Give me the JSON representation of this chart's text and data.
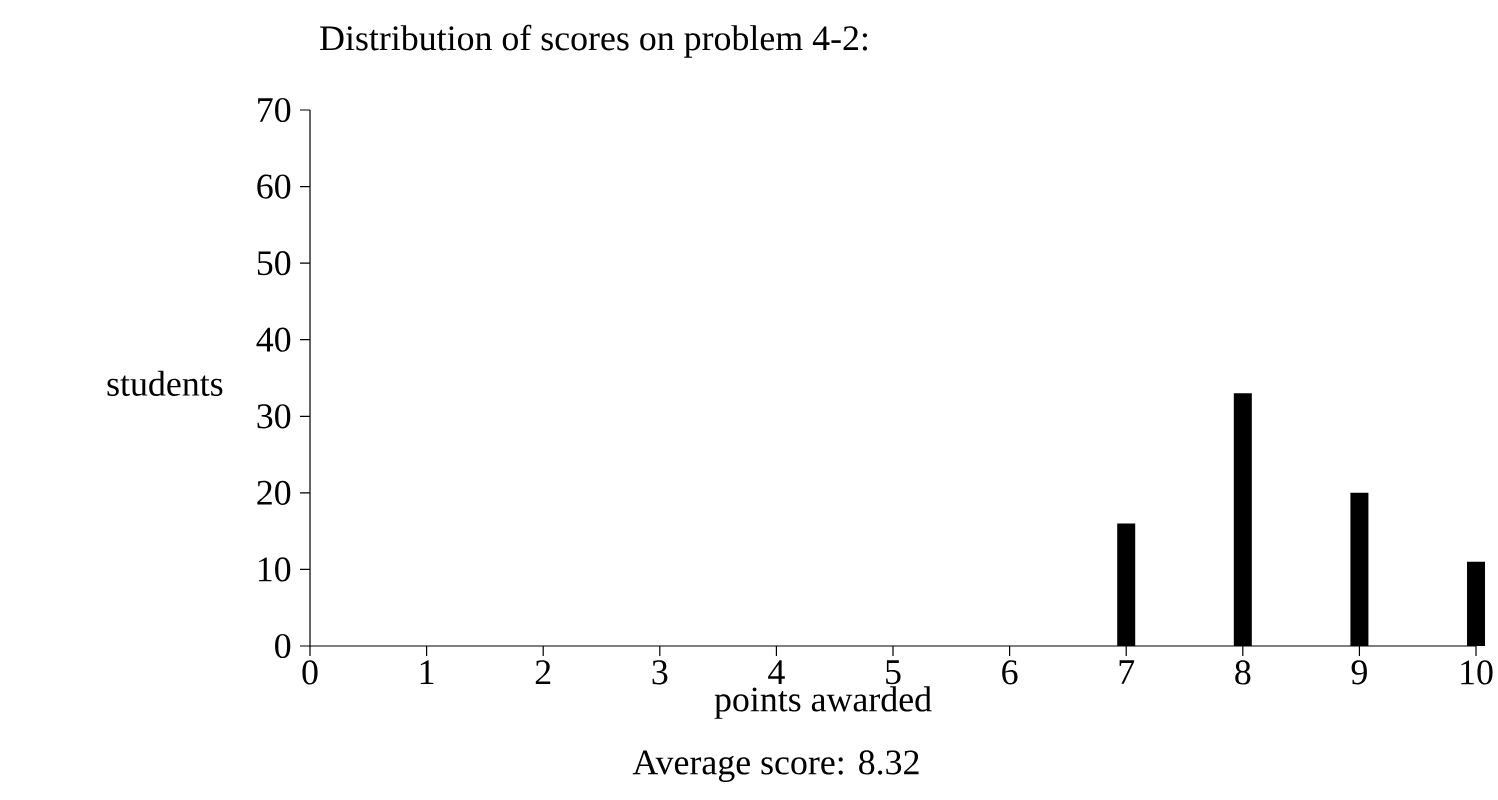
{
  "chart_data": {
    "type": "bar",
    "title": "Distribution of scores on problem 4-2:",
    "xlabel": "points awarded",
    "ylabel": "students",
    "annotations": [
      "Average score: 8.32"
    ],
    "x": [
      7,
      8,
      9,
      10
    ],
    "values": [
      16,
      33,
      20,
      11
    ],
    "color": "#000000",
    "xlim": [
      0,
      10
    ],
    "xticks": [
      0,
      1,
      2,
      3,
      4,
      5,
      6,
      7,
      8,
      9,
      10
    ],
    "ylim": [
      0,
      70
    ],
    "yticks": [
      0,
      10,
      20,
      30,
      40,
      50,
      60,
      70
    ]
  }
}
